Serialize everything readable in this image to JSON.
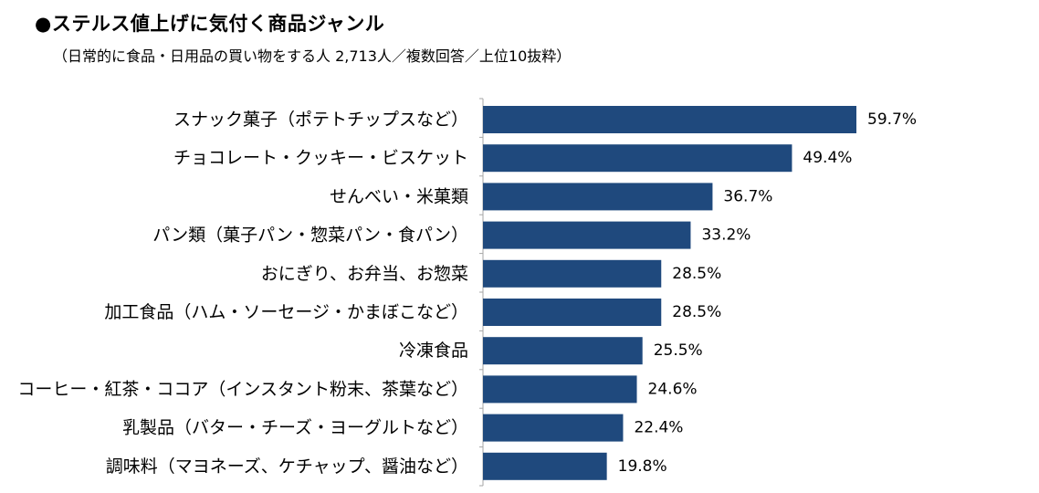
{
  "title": "●ステルス値上げに気付く商品ジャンル",
  "subtitle": "（日常的に食品・日用品の買い物をする人 2,713人／複数回答／上位10抜粋）",
  "colors": {
    "bar": "#1f497d",
    "axis": "#a6a6a6"
  },
  "chart_data": {
    "type": "bar",
    "orientation": "horizontal",
    "title": "●ステルス値上げに気付く商品ジャンル",
    "subtitle": "（日常的に食品・日用品の買い物をする人 2,713人／複数回答／上位10抜粋）",
    "categories": [
      "スナック菓子（ポテトチップスなど）",
      "チョコレート・クッキー・ビスケット",
      "せんべい・米菓類",
      "パン類（菓子パン・惣菜パン・食パン）",
      "おにぎり、お弁当、お惣菜",
      "加工食品（ハム・ソーセージ・かまぼこなど）",
      "冷凍食品",
      "コーヒー・紅茶・ココア（インスタント粉末、茶葉など）",
      "乳製品（バター・チーズ・ヨーグルトなど）",
      "調味料（マヨネーズ、ケチャップ、醤油など）"
    ],
    "values": [
      59.7,
      49.4,
      36.7,
      33.2,
      28.5,
      28.5,
      25.5,
      24.6,
      22.4,
      19.8
    ],
    "value_labels": [
      "59.7%",
      "49.4%",
      "36.7%",
      "33.2%",
      "28.5%",
      "28.5%",
      "25.5%",
      "24.6%",
      "22.4%",
      "19.8%"
    ],
    "unit": "%",
    "xlim": [
      0,
      70
    ],
    "grid": false,
    "legend": "none"
  }
}
